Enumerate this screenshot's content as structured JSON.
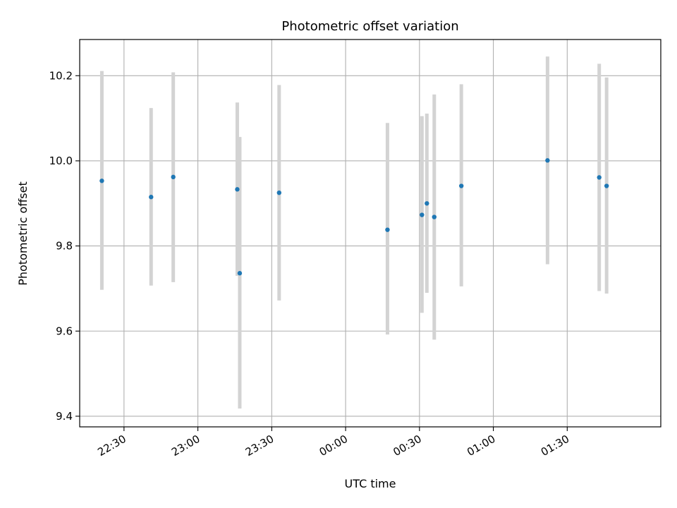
{
  "chart_data": {
    "type": "scatter",
    "title": "Photometric offset variation",
    "xlabel": "UTC time",
    "ylabel": "Photometric offset",
    "x_axis": {
      "kind": "time",
      "range": [
        "22:12",
        "02:08"
      ],
      "ticks": [
        "22:30",
        "23:00",
        "23:30",
        "00:00",
        "00:30",
        "01:00",
        "01:30"
      ]
    },
    "y_axis": {
      "range": [
        9.375,
        10.285
      ],
      "ticks": [
        "9.4",
        "9.6",
        "9.8",
        "10.0",
        "10.2"
      ]
    },
    "grid": true,
    "colors": {
      "point": "#1f77b4",
      "errorbar": "#d3d3d3",
      "grid": "#b0b0b0"
    },
    "points": [
      {
        "time": "22:21",
        "y": 9.953,
        "err_low": 9.697,
        "err_high": 10.211
      },
      {
        "time": "22:41",
        "y": 9.915,
        "err_low": 9.707,
        "err_high": 10.124
      },
      {
        "time": "22:50",
        "y": 9.962,
        "err_low": 9.715,
        "err_high": 10.208
      },
      {
        "time": "23:16",
        "y": 9.933,
        "err_low": 9.73,
        "err_high": 10.137
      },
      {
        "time": "23:17",
        "y": 9.736,
        "err_low": 9.418,
        "err_high": 10.056
      },
      {
        "time": "23:33",
        "y": 9.925,
        "err_low": 9.672,
        "err_high": 10.178
      },
      {
        "time": "00:17",
        "y": 9.838,
        "err_low": 9.592,
        "err_high": 10.089
      },
      {
        "time": "00:31",
        "y": 9.873,
        "err_low": 9.643,
        "err_high": 10.105
      },
      {
        "time": "00:33",
        "y": 9.9,
        "err_low": 9.69,
        "err_high": 10.111
      },
      {
        "time": "00:36",
        "y": 9.868,
        "err_low": 9.58,
        "err_high": 10.156
      },
      {
        "time": "00:47",
        "y": 9.941,
        "err_low": 9.705,
        "err_high": 10.18
      },
      {
        "time": "01:22",
        "y": 10.001,
        "err_low": 9.757,
        "err_high": 10.245
      },
      {
        "time": "01:43",
        "y": 9.961,
        "err_low": 9.694,
        "err_high": 10.228
      },
      {
        "time": "01:46",
        "y": 9.941,
        "err_low": 9.688,
        "err_high": 10.196
      }
    ]
  }
}
